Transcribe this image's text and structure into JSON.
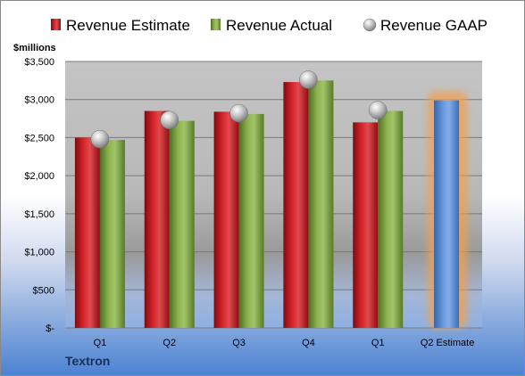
{
  "chart_data": {
    "type": "bar",
    "ylabel": "$millions",
    "ylim": [
      0,
      3500
    ],
    "y_ticks": [
      "$-",
      "$500",
      "$1,000",
      "$1,500",
      "$2,000",
      "$2,500",
      "$3,000",
      "$3,500"
    ],
    "y_tick_values": [
      0,
      500,
      1000,
      1500,
      2000,
      2500,
      3000,
      3500
    ],
    "categories": [
      "Q1",
      "Q2",
      "Q3",
      "Q4",
      "Q1",
      "Q2 Estimate"
    ],
    "series": [
      {
        "name": "Revenue Estimate",
        "color": "#c0141b",
        "values": [
          2500,
          2850,
          2840,
          3230,
          2700,
          null
        ]
      },
      {
        "name": "Revenue Actual",
        "color": "#80a040",
        "values": [
          2470,
          2720,
          2810,
          3250,
          2850,
          null
        ]
      },
      {
        "name": "Revenue GAAP",
        "color": "#b8b8b8",
        "marker": "sphere",
        "values": [
          2480,
          2730,
          2820,
          3260,
          2860,
          null
        ]
      }
    ],
    "highlight": {
      "category": "Q2 Estimate",
      "value": 2990,
      "color": "#5b8fd6",
      "glow": "#f0a050"
    },
    "grid": true,
    "legend_position": "top"
  },
  "company": "Textron"
}
